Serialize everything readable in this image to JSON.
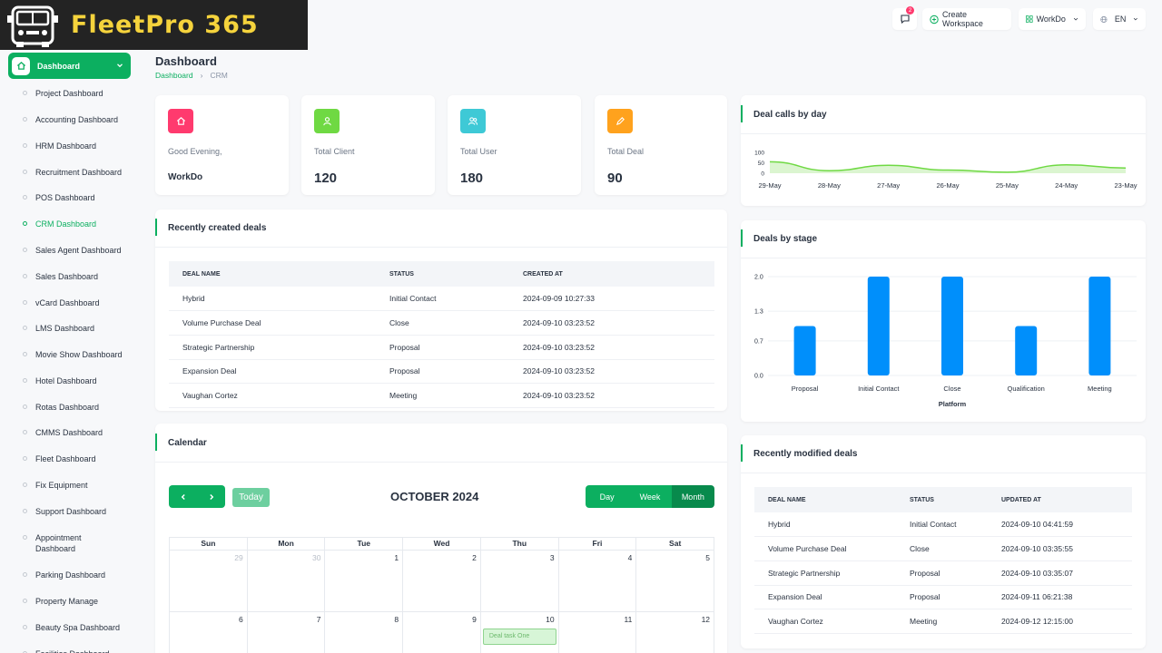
{
  "brand": {
    "name": "FleetPro 365",
    "accent": "#0caf60",
    "logo_bg": "#232323",
    "logo_text_color": "#f5d33c"
  },
  "header": {
    "notification_count": "2",
    "create_workspace": "Create Workspace",
    "workspace": "WorkDo",
    "language": "EN"
  },
  "sidebar": {
    "active": "Dashboard",
    "items": [
      "Project Dashboard",
      "Accounting Dashboard",
      "HRM Dashboard",
      "Recruitment Dashboard",
      "POS Dashboard",
      "CRM Dashboard",
      "Sales Agent Dashboard",
      "Sales Dashboard",
      "vCard Dashboard",
      "LMS Dashboard",
      "Movie Show Dashboard",
      "Hotel Dashboard",
      "Rotas Dashboard",
      "CMMS Dashboard",
      "Fleet Dashboard",
      "Fix Equipment",
      "Support Dashboard",
      "Appointment Dashboard",
      "Parking Dashboard",
      "Property Manage",
      "Beauty Spa Dashboard",
      "Facilities Dashboard"
    ]
  },
  "page": {
    "title": "Dashboard",
    "breadcrumb_home": "Dashboard",
    "breadcrumb_sep": "›",
    "breadcrumb_current": "CRM"
  },
  "stats": [
    {
      "label": "Good Evening,",
      "value": "WorkDo",
      "color": "#ff3a6e",
      "icon": "home-icon"
    },
    {
      "label": "Total Client",
      "value": "120",
      "color": "#6fd943",
      "icon": "user-icon"
    },
    {
      "label": "Total User",
      "value": "180",
      "color": "#3ec9d6",
      "icon": "users-icon"
    },
    {
      "label": "Total Deal",
      "value": "90",
      "color": "#ffa21d",
      "icon": "pencil-icon"
    }
  ],
  "recent_deals": {
    "title": "Recently created deals",
    "columns": [
      "DEAL NAME",
      "STATUS",
      "CREATED AT"
    ],
    "rows": [
      [
        "Hybrid",
        "Initial Contact",
        "2024-09-09 10:27:33"
      ],
      [
        "Volume Purchase Deal",
        "Close",
        "2024-09-10 03:23:52"
      ],
      [
        "Strategic Partnership",
        "Proposal",
        "2024-09-10 03:23:52"
      ],
      [
        "Expansion Deal",
        "Proposal",
        "2024-09-10 03:23:52"
      ],
      [
        "Vaughan Cortez",
        "Meeting",
        "2024-09-10 03:23:52"
      ]
    ]
  },
  "calendar": {
    "title": "Calendar",
    "today": "Today",
    "month_label": "OCTOBER 2024",
    "views": [
      "Day",
      "Week",
      "Month"
    ],
    "selected_view": "Month",
    "weekdays": [
      "Sun",
      "Mon",
      "Tue",
      "Wed",
      "Thu",
      "Fri",
      "Sat"
    ],
    "weeks": [
      [
        "29",
        "30",
        "1",
        "2",
        "3",
        "4",
        "5"
      ],
      [
        "6",
        "7",
        "8",
        "9",
        "10",
        "11",
        "12"
      ]
    ],
    "event": {
      "label": "Deal task One",
      "day": "10"
    }
  },
  "modified_deals": {
    "title": "Recently modified deals",
    "columns": [
      "DEAL NAME",
      "STATUS",
      "UPDATED AT"
    ],
    "rows": [
      [
        "Hybrid",
        "Initial Contact",
        "2024-09-10 04:41:59"
      ],
      [
        "Volume Purchase Deal",
        "Close",
        "2024-09-10 03:35:55"
      ],
      [
        "Strategic Partnership",
        "Proposal",
        "2024-09-10 03:35:07"
      ],
      [
        "Expansion Deal",
        "Proposal",
        "2024-09-11 06:21:38"
      ],
      [
        "Vaughan Cortez",
        "Meeting",
        "2024-09-12 12:15:00"
      ]
    ]
  },
  "chart_data": [
    {
      "type": "area",
      "title": "Deal calls by day",
      "categories": [
        "29-May",
        "28-May",
        "27-May",
        "26-May",
        "25-May",
        "24-May",
        "23-May"
      ],
      "yticks": [
        "100",
        "50",
        "0"
      ],
      "ylim": [
        0,
        100
      ],
      "series": [
        {
          "values": [
            55,
            12,
            38,
            15,
            5,
            40,
            25
          ]
        }
      ],
      "color": "#6fd943",
      "grid": false
    },
    {
      "type": "bar",
      "title": "Deals by stage",
      "xlabel": "Platform",
      "categories": [
        "Proposal",
        "Initial Contact",
        "Close",
        "Qualification",
        "Meeting"
      ],
      "values": [
        1,
        2,
        2,
        1,
        2
      ],
      "yticks": [
        "2.0",
        "1.3",
        "0.7",
        "0.0"
      ],
      "ylim": [
        0,
        2
      ],
      "color": "#008ffb",
      "grid": true
    }
  ]
}
